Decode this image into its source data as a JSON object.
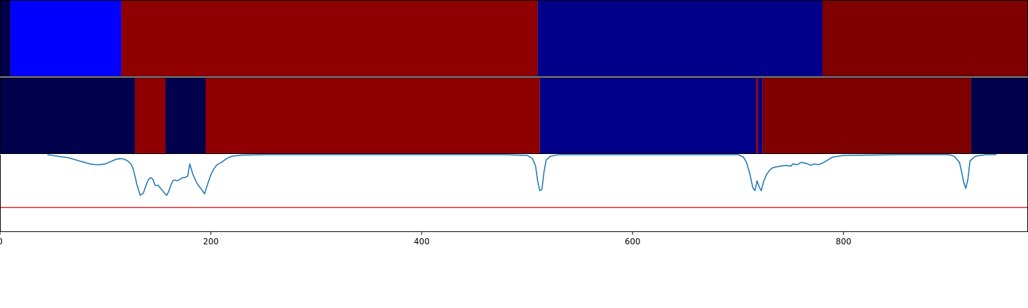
{
  "chart_data": {
    "type": "heatmap",
    "title": "",
    "xlabel": "",
    "ylabel": "",
    "xlim": [
      0,
      975
    ],
    "x_ticks": [
      {
        "value": 0,
        "label": "0"
      },
      {
        "value": 200,
        "label": "200"
      },
      {
        "value": 400,
        "label": "400"
      },
      {
        "value": 600,
        "label": "600"
      },
      {
        "value": 800,
        "label": "800"
      }
    ],
    "segment_rows": [
      {
        "segments": [
          {
            "start": 0,
            "end": 10,
            "color": "#00004c"
          },
          {
            "start": 10,
            "end": 115,
            "color": "#0000ff"
          },
          {
            "start": 115,
            "end": 510,
            "color": "#900000"
          },
          {
            "start": 510,
            "end": 780,
            "color": "#00008b"
          },
          {
            "start": 780,
            "end": 975,
            "color": "#7e0000"
          }
        ]
      },
      {
        "segments": [
          {
            "start": 0,
            "end": 128,
            "color": "#00004c"
          },
          {
            "start": 128,
            "end": 157,
            "color": "#900000"
          },
          {
            "start": 157,
            "end": 195,
            "color": "#00004c"
          },
          {
            "start": 195,
            "end": 512,
            "color": "#900000"
          },
          {
            "start": 512,
            "end": 717,
            "color": "#00008b"
          },
          {
            "start": 717,
            "end": 719,
            "color": "#900000"
          },
          {
            "start": 719,
            "end": 723,
            "color": "#00008b"
          },
          {
            "start": 723,
            "end": 921,
            "color": "#7e0000"
          },
          {
            "start": 921,
            "end": 975,
            "color": "#00004c"
          }
        ]
      }
    ],
    "line_panel": {
      "ylim": [
        0,
        1
      ],
      "threshold": {
        "value": 0.31,
        "color": "#d62728"
      },
      "series": [
        {
          "color": "#1f77b4",
          "x": [
            45,
            55,
            65,
            70,
            75,
            80,
            85,
            90,
            95,
            100,
            105,
            110,
            115,
            118,
            121,
            124,
            126,
            128,
            130,
            133,
            136,
            139,
            141,
            143,
            145,
            147,
            150,
            153,
            156,
            158,
            160,
            162,
            164,
            166,
            168,
            171,
            173,
            175,
            178,
            180,
            183,
            186,
            188,
            191,
            194,
            197,
            200,
            203,
            206,
            210,
            215,
            220,
            230,
            250,
            300,
            400,
            480,
            500,
            505,
            508,
            510,
            512,
            514,
            516,
            518,
            522,
            530,
            550,
            600,
            650,
            700,
            705,
            708,
            711,
            714,
            716,
            718,
            720,
            722,
            724,
            727,
            730,
            733,
            736,
            740,
            745,
            750,
            752,
            756,
            760,
            763,
            766,
            769,
            772,
            776,
            780,
            785,
            790,
            800,
            850,
            900,
            905,
            910,
            912,
            914,
            916,
            918,
            920,
            925,
            935,
            945
          ],
          "y": [
            1,
            0.98,
            0.96,
            0.94,
            0.92,
            0.9,
            0.88,
            0.87,
            0.87,
            0.88,
            0.91,
            0.94,
            0.95,
            0.94,
            0.92,
            0.88,
            0.83,
            0.72,
            0.6,
            0.47,
            0.5,
            0.62,
            0.68,
            0.7,
            0.68,
            0.6,
            0.6,
            0.55,
            0.5,
            0.47,
            0.52,
            0.6,
            0.66,
            0.67,
            0.66,
            0.68,
            0.7,
            0.7,
            0.72,
            0.88,
            0.74,
            0.65,
            0.6,
            0.55,
            0.49,
            0.62,
            0.74,
            0.82,
            0.87,
            0.9,
            0.95,
            0.98,
            0.995,
            1,
            1,
            1,
            1,
            0.99,
            0.95,
            0.85,
            0.65,
            0.53,
            0.55,
            0.78,
            0.93,
            0.98,
            1,
            1,
            1,
            1,
            1,
            0.97,
            0.9,
            0.76,
            0.57,
            0.53,
            0.66,
            0.58,
            0.53,
            0.64,
            0.74,
            0.8,
            0.83,
            0.84,
            0.85,
            0.86,
            0.85,
            0.88,
            0.87,
            0.9,
            0.89,
            0.88,
            0.86,
            0.88,
            0.87,
            0.89,
            0.93,
            0.97,
            0.99,
            1,
            1,
            0.98,
            0.9,
            0.78,
            0.64,
            0.56,
            0.68,
            0.92,
            0.98,
            1,
            1
          ]
        }
      ]
    }
  }
}
